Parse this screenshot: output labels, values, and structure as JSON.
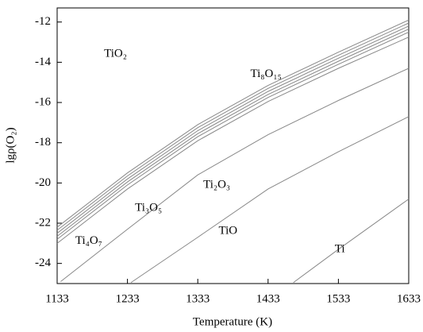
{
  "chart_data": {
    "type": "line",
    "xlabel": "Temperature (K)",
    "ylabel": "lgρ(O₂)",
    "xlim": [
      1133,
      1633
    ],
    "xticks": [
      1133,
      1233,
      1333,
      1433,
      1533,
      1633
    ],
    "ylim": [
      -25,
      -11.3
    ],
    "yticks": [
      -24,
      -22,
      -20,
      -18,
      -16,
      -14,
      -12
    ],
    "grid": false,
    "series": [
      {
        "color": "#888888",
        "x": [
          1133,
          1233,
          1333,
          1433,
          1533,
          1633
        ],
        "values": [
          -22.2,
          -19.5,
          -17.1,
          -15.15,
          -13.5,
          -11.9
        ]
      },
      {
        "color": "#888888",
        "x": [
          1133,
          1233,
          1333,
          1433,
          1533,
          1633
        ],
        "values": [
          -22.35,
          -19.65,
          -17.25,
          -15.3,
          -13.65,
          -12.05
        ]
      },
      {
        "color": "#888888",
        "x": [
          1133,
          1233,
          1333,
          1433,
          1533,
          1633
        ],
        "values": [
          -22.5,
          -19.8,
          -17.4,
          -15.45,
          -13.8,
          -12.2
        ]
      },
      {
        "color": "#888888",
        "x": [
          1133,
          1233,
          1333,
          1433,
          1533,
          1633
        ],
        "values": [
          -22.65,
          -19.95,
          -17.55,
          -15.6,
          -13.95,
          -12.35
        ]
      },
      {
        "color": "#888888",
        "x": [
          1133,
          1233,
          1333,
          1433,
          1533,
          1633
        ],
        "values": [
          -22.8,
          -20.1,
          -17.7,
          -15.75,
          -14.1,
          -12.5
        ]
      },
      {
        "color": "#888888",
        "x": [
          1133,
          1233,
          1333,
          1433,
          1533,
          1633
        ],
        "values": [
          -23.0,
          -20.3,
          -17.9,
          -15.95,
          -14.3,
          -12.75
        ]
      },
      {
        "color": "#888888",
        "x": [
          1138,
          1233,
          1333,
          1433,
          1533,
          1633
        ],
        "values": [
          -24.9,
          -22.3,
          -19.6,
          -17.6,
          -15.9,
          -14.3
        ]
      },
      {
        "color": "#888888",
        "x": [
          1238,
          1333,
          1433,
          1533,
          1633
        ],
        "values": [
          -24.95,
          -22.7,
          -20.3,
          -18.45,
          -16.7
        ]
      },
      {
        "color": "#888888",
        "x": [
          1469,
          1533,
          1633
        ],
        "values": [
          -24.95,
          -23.3,
          -20.8
        ]
      }
    ],
    "annotations": [
      {
        "text": "TiO₂",
        "x": 1216,
        "y": -13.6
      },
      {
        "text": "Ti₈O₁₅",
        "x": 1430,
        "y": -14.6
      },
      {
        "text": "Ti₃O₅",
        "x": 1263,
        "y": -21.25
      },
      {
        "text": "Ti₂O₃",
        "x": 1360,
        "y": -20.1
      },
      {
        "text": "TiO",
        "x": 1376,
        "y": -22.4
      },
      {
        "text": "Ti₄O₇",
        "x": 1178,
        "y": -22.9
      },
      {
        "text": "Ti",
        "x": 1535,
        "y": -23.3
      }
    ]
  }
}
